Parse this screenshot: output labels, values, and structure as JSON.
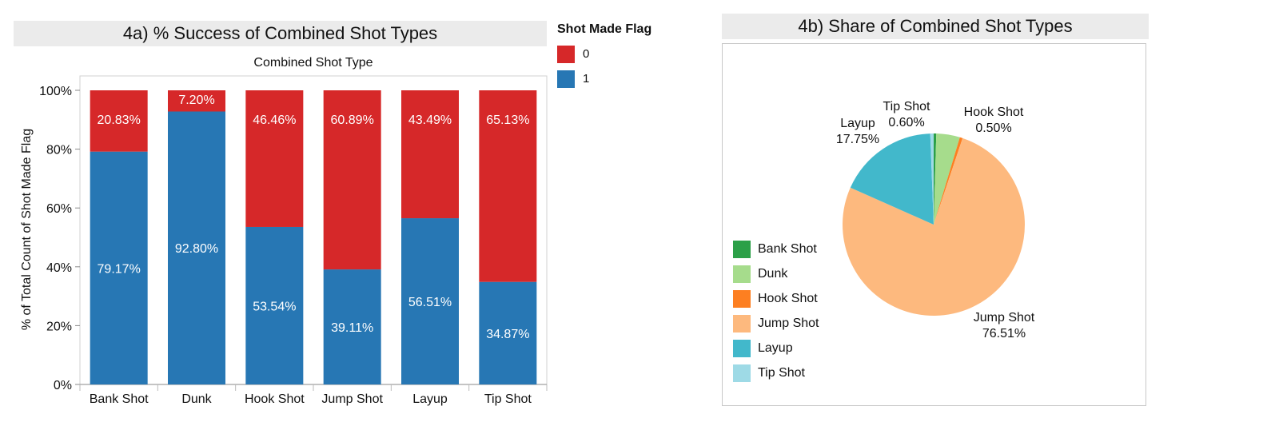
{
  "chart_data": [
    {
      "type": "bar",
      "stacked": "percent",
      "title": "4a) % Success of Combined Shot Types",
      "column_header": "Combined Shot Type",
      "ylabel": "% of Total Count of Shot Made Flag",
      "ylim": [
        0,
        100
      ],
      "yticks": [
        "0%",
        "20%",
        "40%",
        "60%",
        "80%",
        "100%"
      ],
      "categories": [
        "Bank Shot",
        "Dunk",
        "Hook Shot",
        "Jump Shot",
        "Layup",
        "Tip Shot"
      ],
      "legend_title": "Shot Made Flag",
      "series": [
        {
          "name": "1",
          "color": "#2777b4",
          "values": [
            79.17,
            92.8,
            53.54,
            39.11,
            56.51,
            34.87
          ],
          "labels": [
            "79.17%",
            "92.80%",
            "53.54%",
            "39.11%",
            "56.51%",
            "34.87%"
          ]
        },
        {
          "name": "0",
          "color": "#d62829",
          "values": [
            20.83,
            7.2,
            46.46,
            60.89,
            43.49,
            65.13
          ],
          "labels": [
            "20.83%",
            "7.20%",
            "46.46%",
            "60.89%",
            "43.49%",
            "65.13%"
          ]
        }
      ],
      "legend_order": [
        "0",
        "1"
      ]
    },
    {
      "type": "pie",
      "title": "4b) Share of Combined Shot Types",
      "slices": [
        {
          "name": "Bank Shot",
          "value": 0.46,
          "color": "#2ca048",
          "label": ""
        },
        {
          "name": "Dunk",
          "value": 4.18,
          "color": "#a6dc8c",
          "label": ""
        },
        {
          "name": "Hook Shot",
          "value": 0.5,
          "color": "#fd7f21",
          "label": "Hook Shot\n0.50%"
        },
        {
          "name": "Jump Shot",
          "value": 76.51,
          "color": "#fdb97e",
          "label": "Jump Shot\n76.51%"
        },
        {
          "name": "Layup",
          "value": 17.75,
          "color": "#42b8cb",
          "label": "Layup\n17.75%"
        },
        {
          "name": "Tip Shot",
          "value": 0.6,
          "color": "#9edae6",
          "label": "Tip Shot\n0.60%"
        }
      ]
    }
  ]
}
